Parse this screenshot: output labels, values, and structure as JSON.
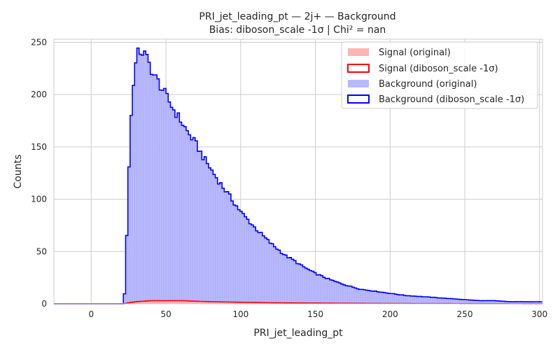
{
  "chart_data": {
    "type": "histogram",
    "title": "PRI_jet_leading_pt — 2j+ — Background",
    "subtitle": "Bias: diboson_scale -1σ | Chi² = nan",
    "xlabel": "PRI_jet_leading_pt",
    "ylabel": "Counts",
    "xlim": [
      -25,
      302
    ],
    "ylim": [
      0,
      253
    ],
    "x_ticks": [
      0,
      50,
      100,
      150,
      200,
      250,
      300
    ],
    "y_ticks": [
      0,
      50,
      100,
      150,
      200,
      250
    ],
    "grid": true,
    "legend_position": "top-right",
    "colors": {
      "signal_fill": "#ffb3b3",
      "signal_line": "#ff0000",
      "background_fill": "#b8b8ff",
      "background_line": "#0000ff"
    },
    "background_profile": [
      [
        20,
        0
      ],
      [
        22,
        0
      ],
      [
        23,
        38
      ],
      [
        24,
        75
      ],
      [
        25,
        122
      ],
      [
        26,
        160
      ],
      [
        27,
        186
      ],
      [
        28,
        210
      ],
      [
        29,
        222
      ],
      [
        30,
        231
      ],
      [
        31,
        238
      ],
      [
        32,
        242
      ],
      [
        34,
        241
      ],
      [
        36,
        238
      ],
      [
        38,
        232
      ],
      [
        40,
        225
      ],
      [
        42,
        218
      ],
      [
        45,
        212
      ],
      [
        50,
        199
      ],
      [
        55,
        186
      ],
      [
        60,
        175
      ],
      [
        65,
        163
      ],
      [
        70,
        153
      ],
      [
        75,
        140
      ],
      [
        80,
        129
      ],
      [
        85,
        118
      ],
      [
        90,
        108
      ],
      [
        95,
        98
      ],
      [
        100,
        88
      ],
      [
        105,
        80
      ],
      [
        110,
        72
      ],
      [
        115,
        65
      ],
      [
        120,
        58
      ],
      [
        125,
        52
      ],
      [
        130,
        46
      ],
      [
        135,
        42
      ],
      [
        140,
        37
      ],
      [
        145,
        33
      ],
      [
        150,
        29
      ],
      [
        155,
        26
      ],
      [
        160,
        23
      ],
      [
        170,
        18
      ],
      [
        180,
        14
      ],
      [
        190,
        12
      ],
      [
        200,
        10
      ],
      [
        210,
        8
      ],
      [
        220,
        7
      ],
      [
        230,
        6
      ],
      [
        240,
        5
      ],
      [
        250,
        4
      ],
      [
        260,
        3
      ],
      [
        270,
        3
      ],
      [
        280,
        2
      ],
      [
        290,
        2
      ],
      [
        302,
        2
      ]
    ],
    "signal_profile": [
      [
        20,
        0
      ],
      [
        22,
        0
      ],
      [
        25,
        1
      ],
      [
        30,
        2
      ],
      [
        40,
        3
      ],
      [
        50,
        3
      ],
      [
        60,
        3
      ],
      [
        70,
        2.5
      ],
      [
        80,
        2
      ],
      [
        100,
        1.5
      ],
      [
        120,
        1
      ],
      [
        150,
        0.7
      ],
      [
        200,
        0.3
      ],
      [
        250,
        0.15
      ],
      [
        302,
        0.05
      ]
    ],
    "series": [
      {
        "name": "Signal (original)",
        "style": "filled"
      },
      {
        "name": "Signal (diboson_scale -1σ)",
        "style": "step"
      },
      {
        "name": "Background (original)",
        "style": "filled"
      },
      {
        "name": "Background (diboson_scale -1σ)",
        "style": "step"
      }
    ]
  }
}
